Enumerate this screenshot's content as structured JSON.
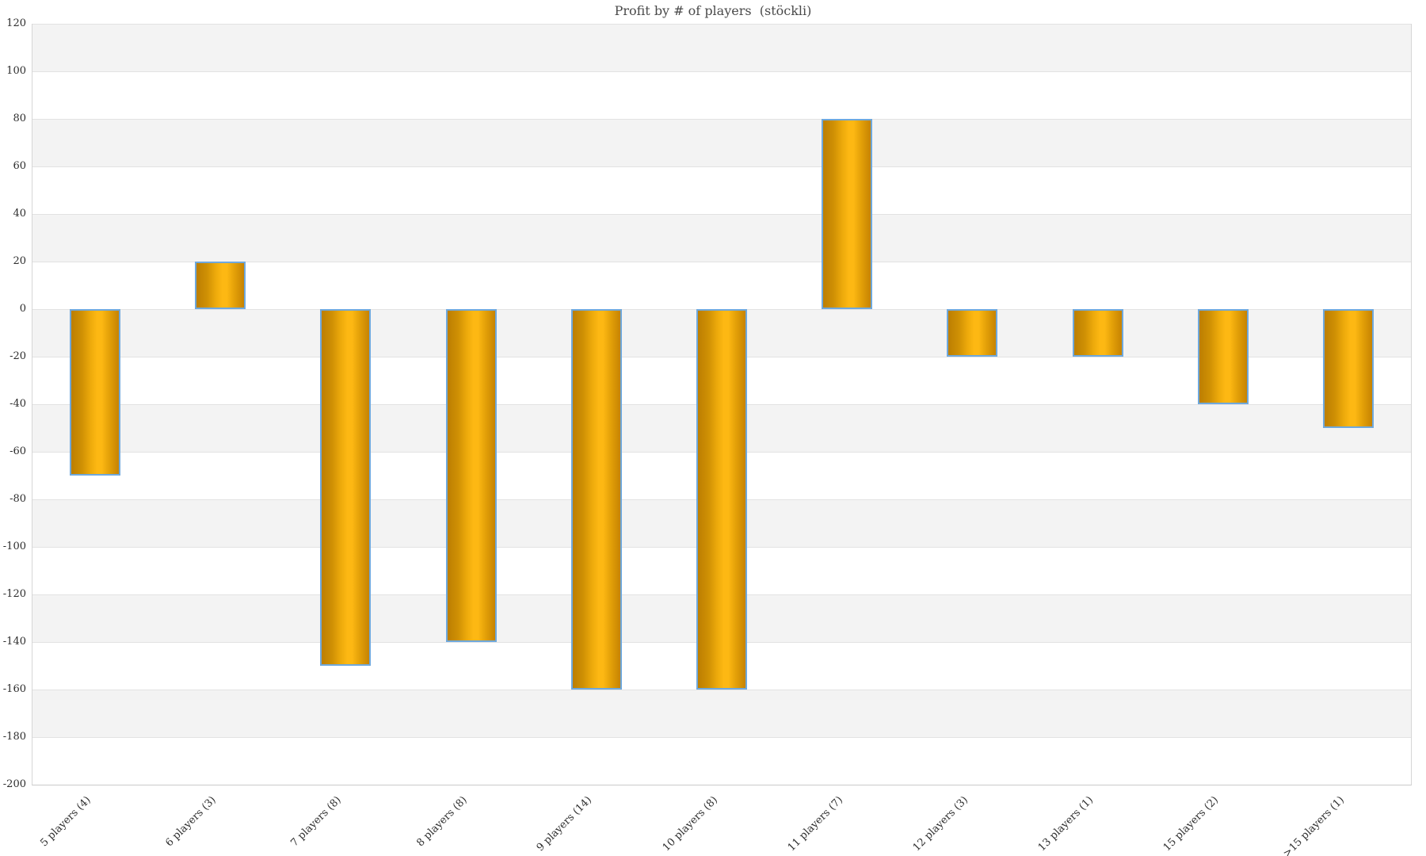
{
  "chart_data": {
    "type": "bar",
    "title": "Profit by # of players  (stöckli)",
    "categories": [
      "5 players (4)",
      "6 players (3)",
      "7 players (8)",
      "8 players (8)",
      "9 players (14)",
      "10 players (8)",
      "11 players (7)",
      "12 players (3)",
      "13 players (1)",
      "15 players (2)",
      ">15 players (1)"
    ],
    "values": [
      -70,
      20,
      -150,
      -140,
      -160,
      -160,
      80,
      -20,
      -20,
      -40,
      -50
    ],
    "xlabel": "",
    "ylabel": "",
    "ylim": [
      -200,
      120
    ],
    "ytick_step": 20,
    "yticks": [
      120,
      100,
      80,
      60,
      40,
      20,
      0,
      -20,
      -40,
      -60,
      -80,
      -100,
      -120,
      -140,
      -160,
      -180,
      -200
    ],
    "legend": "none",
    "grid": "horizontal gridlines every 20 units with alternating gray/white bands, gray band at top (120-100)",
    "colors": {
      "bar_gradient_left": "#bc7e02",
      "bar_gradient_mid": "#fdb813",
      "bar_gradient_right": "#c68302",
      "bar_border": "#6fa8dc",
      "band_gray": "#f3f3f3",
      "band_white": "#ffffff",
      "gridline": "#e2e2e2",
      "plot_border": "#d6d6d6",
      "axis_text": "#2e2e2e",
      "title_text": "#4a4a4a"
    }
  }
}
